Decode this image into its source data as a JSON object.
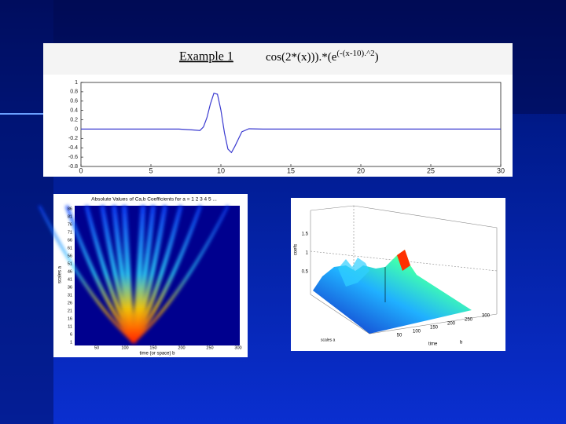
{
  "example": {
    "title": "Example 1",
    "formula": "cos(2*(x))).*(e",
    "exponent": "(-(x-10).^2",
    "close": ")"
  },
  "chart_data": {
    "type": "line",
    "x": [
      0,
      4,
      7,
      8,
      8.5,
      8.75,
      9,
      9.25,
      9.5,
      9.75,
      10,
      10.25,
      10.5,
      10.75,
      11,
      11.5,
      12,
      13,
      20,
      30
    ],
    "values": [
      0,
      0,
      0,
      -0.018,
      -0.029,
      0.046,
      0.243,
      0.535,
      0.77,
      0.748,
      0.408,
      -0.075,
      -0.427,
      -0.502,
      -0.368,
      -0.056,
      0.008,
      0,
      0,
      0
    ],
    "color": "#3a3ad0",
    "xlim": [
      0,
      30
    ],
    "ylim": [
      -0.8,
      1
    ],
    "xticks": [
      0,
      5,
      10,
      15,
      20,
      25,
      30
    ],
    "yticks": [
      -0.8,
      -0.6,
      -0.4,
      -0.2,
      0,
      0.2,
      0.4,
      0.6,
      0.8,
      1
    ]
  },
  "scalogram": {
    "title": "Absolute Values of Ca,b Coefficients for a = 1 2 3 4 5 ...",
    "xlabel": "time (or space) b",
    "ylabel": "scales a",
    "xticks": [
      50,
      100,
      150,
      200,
      250,
      300
    ],
    "yticks": [
      1,
      6,
      11,
      16,
      21,
      26,
      31,
      36,
      41,
      46,
      51,
      56,
      61,
      66,
      71,
      76,
      81,
      86
    ]
  },
  "surface": {
    "zlabel": "coefs",
    "zticks": [
      0.5,
      1,
      1.5
    ],
    "xlabel": "time",
    "blabel": "b",
    "ylabel": "scales a",
    "xticks": [
      50,
      100,
      150,
      200,
      250,
      300
    ]
  }
}
